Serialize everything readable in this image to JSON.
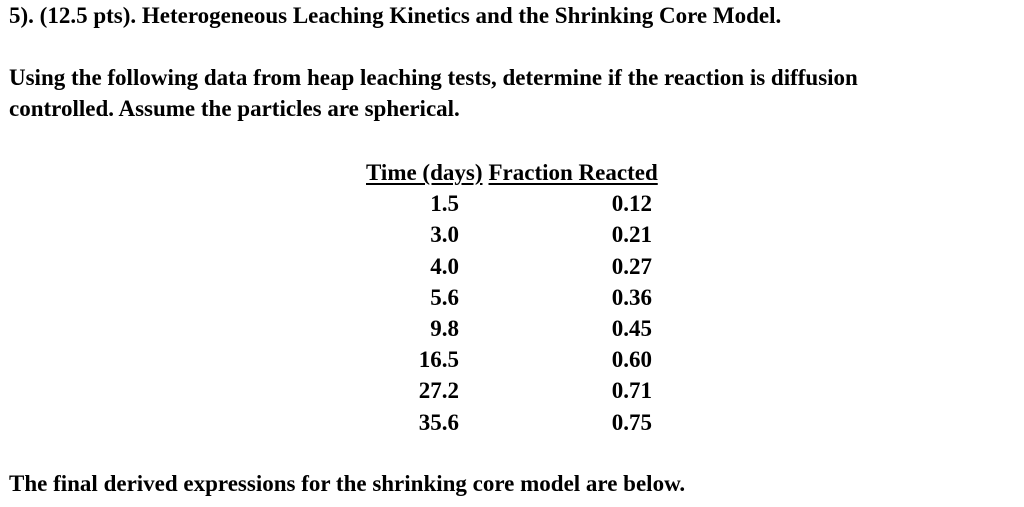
{
  "document": {
    "title": "5). (12.5 pts). Heterogeneous Leaching Kinetics and the Shrinking Core Model.",
    "prompt_line1": "Using the following data from heap leaching tests, determine if the reaction is diffusion",
    "prompt_line2": "controlled.  Assume the particles are spherical.",
    "footer": "The final derived expressions for the shrinking core model are below."
  },
  "table": {
    "headers": [
      "Time (days)",
      "Fraction Reacted"
    ],
    "rows": [
      {
        "time": "1.5",
        "fraction": "0.12"
      },
      {
        "time": "3.0",
        "fraction": "0.21"
      },
      {
        "time": "4.0",
        "fraction": "0.27"
      },
      {
        "time": "5.6",
        "fraction": "0.36"
      },
      {
        "time": "9.8",
        "fraction": "0.45"
      },
      {
        "time": "16.5",
        "fraction": "0.60"
      },
      {
        "time": "27.2",
        "fraction": "0.71"
      },
      {
        "time": "35.6",
        "fraction": "0.75"
      }
    ]
  }
}
